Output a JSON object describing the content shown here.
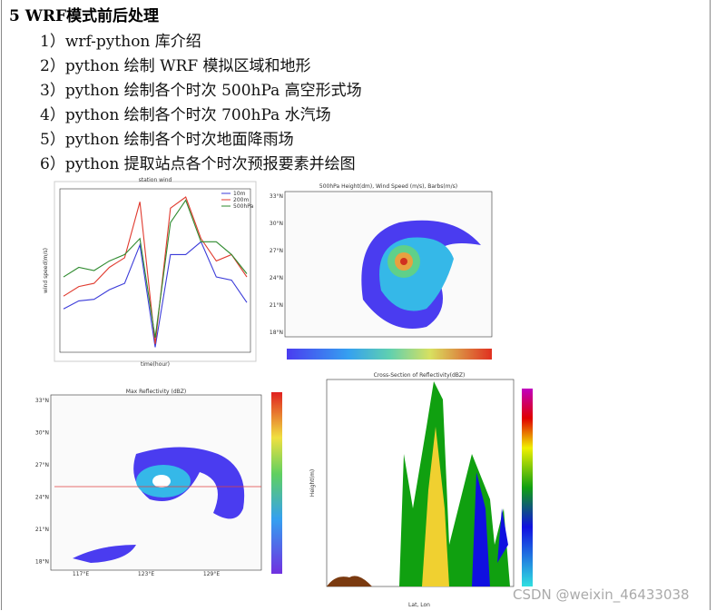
{
  "heading": "5 WRF模式前后处理",
  "items": [
    "1）wrf-python 库介绍",
    "2）python 绘制 WRF 模拟区域和地形",
    "3）python 绘制各个时次 500hPa 高空形式场",
    "4）python 绘制各个时次 700hPa 水汽场",
    "5）python 绘制各个时次地面降雨场",
    "6）python 提取站点各个时次预报要素并绘图"
  ],
  "figures": [
    {
      "title": "station wind",
      "xlabel": "time(hour)",
      "ylabel": "wind speed(m/s)",
      "ylim": [
        0,
        10
      ],
      "series": [
        {
          "name": "10m",
          "color": "#3b3bd9",
          "values": [
            2.6,
            3.1,
            3.2,
            3.8,
            4.2,
            6.6,
            0.2,
            6.0,
            6.0,
            6.8,
            4.6,
            4.4,
            3.0
          ]
        },
        {
          "name": "200m",
          "color": "#e03a2e",
          "values": [
            3.4,
            4.0,
            4.2,
            5.2,
            5.8,
            9.3,
            0.4,
            8.9,
            9.6,
            7.0,
            5.6,
            6.0,
            4.6
          ]
        },
        {
          "name": "500hPa",
          "color": "#2e8a2e",
          "values": [
            4.6,
            5.2,
            5.0,
            5.6,
            6.0,
            7.0,
            0.8,
            8.0,
            9.4,
            6.8,
            6.8,
            6.0,
            4.8
          ]
        }
      ]
    },
    {
      "title": "500hPa Height(dm), Wind Speed (m/s), Barbs(m/s)",
      "yticks": [
        "33°N",
        "30°N",
        "27°N",
        "24°N",
        "21°N",
        "18°N"
      ]
    },
    {
      "title": "Max Reflectivity (dBZ)",
      "yticks": [
        "33°N",
        "30°N",
        "27°N",
        "24°N",
        "21°N",
        "18°N"
      ],
      "xticks": [
        "117°E",
        "123°E",
        "129°E"
      ]
    },
    {
      "title": "Cross-Section of Reflectivity(dBZ)",
      "ylabel": "Height(m)",
      "xlabel": "Lat, Lon"
    }
  ],
  "watermark": "CSDN @weixin_46433038"
}
